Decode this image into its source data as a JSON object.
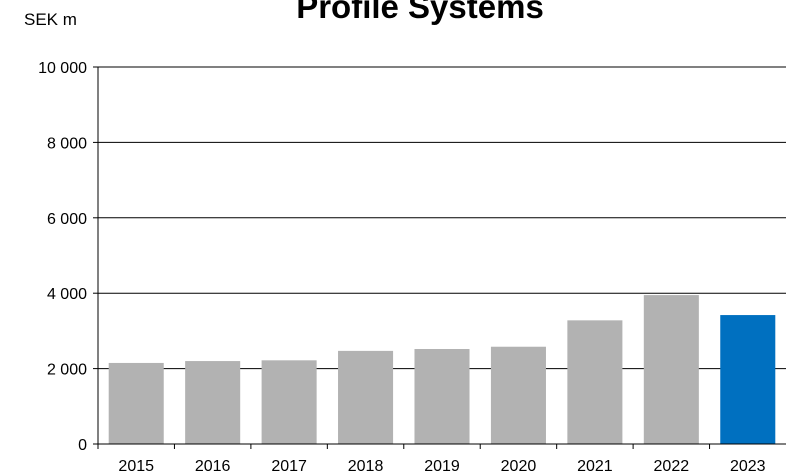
{
  "chart_data": {
    "type": "bar",
    "title": "Profile Systems",
    "ylabel": "SEK m",
    "xlabel": "",
    "categories": [
      "2015",
      "2016",
      "2017",
      "2018",
      "2019",
      "2020",
      "2021",
      "2022",
      "2023"
    ],
    "values": [
      2150,
      2200,
      2220,
      2470,
      2520,
      2580,
      3280,
      3950,
      3420
    ],
    "ylim": [
      0,
      10000
    ],
    "yticks": [
      0,
      2000,
      4000,
      6000,
      8000,
      10000
    ],
    "ytick_labels": [
      "0",
      "2 000",
      "4 000",
      "6 000",
      "8 000",
      "10 000"
    ],
    "grid": true,
    "colors": {
      "default_bar": "#b2b2b2",
      "highlight_bar": "#0070c0",
      "gridline": "#000000"
    },
    "highlight_category": "2023"
  }
}
